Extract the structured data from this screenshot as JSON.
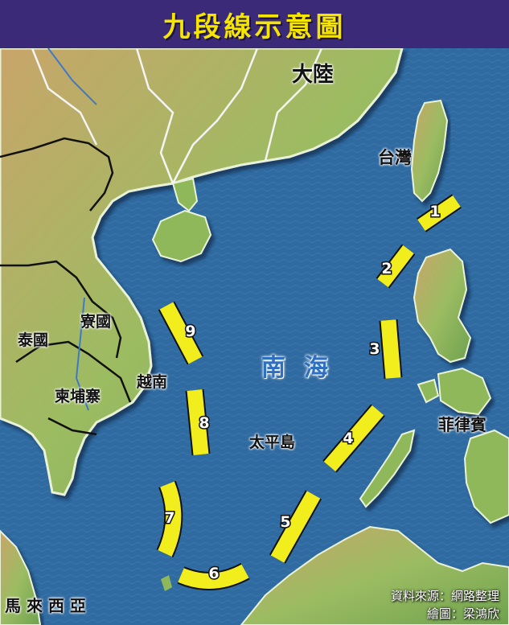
{
  "title": "九段線示意圖",
  "labels": {
    "mainland": "大陸",
    "taiwan": "台灣",
    "laos": "寮國",
    "thailand": "泰國",
    "cambodia": "柬埔寨",
    "vietnam": "越南",
    "south_sea": "南",
    "south_sea2": "海",
    "taiping": "太平島",
    "philippines": "菲律賓",
    "malaysia": "馬 來 西 亞"
  },
  "dash_numbers": [
    "1",
    "2",
    "3",
    "4",
    "5",
    "6",
    "7",
    "8",
    "9"
  ],
  "credits": {
    "source": "資料來源：網路整理",
    "artist": "繪圖：梁鴻欣"
  },
  "colors": {
    "title_bg": "#3a2a78",
    "title_text": "#f6e500",
    "sea": "#2f6aa0",
    "land": "#7fae58",
    "dash": "#f2ee1e",
    "sea_label": "#2e6fc0"
  }
}
